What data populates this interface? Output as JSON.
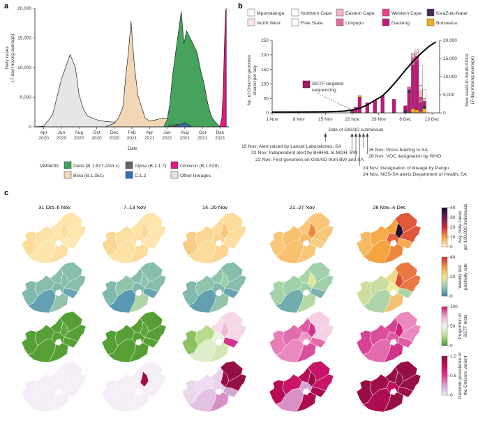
{
  "panels": {
    "a": "a",
    "b": "b",
    "c": "c"
  },
  "chart_data": [
    {
      "type": "area",
      "panel": "a",
      "ylabel": "Daily cases\n(7-day moving average)",
      "xlabel": "Date",
      "ylim": [
        0,
        20000
      ],
      "yticks": [
        0,
        5000,
        10000,
        15000,
        20000
      ],
      "ytick_labels": [
        "0",
        "5,000",
        "10,000",
        "15,000",
        "20,000"
      ],
      "x_unit": "months since 1 Mar 2020",
      "xlim": [
        0,
        22
      ],
      "xticks": [
        1,
        3,
        5,
        7,
        9,
        11,
        13,
        15,
        17,
        19,
        21
      ],
      "xtick_labels": [
        [
          "Apr",
          "2020"
        ],
        [
          "Jun",
          "2020"
        ],
        [
          "Aug",
          "2020"
        ],
        [
          "Oct",
          "2020"
        ],
        [
          "Dec",
          "2020"
        ],
        [
          "Feb",
          "2021"
        ],
        [
          "Apr",
          "2021"
        ],
        [
          "Jun",
          "2021"
        ],
        [
          "Aug",
          "2021"
        ],
        [
          "Oct",
          "2021"
        ],
        [
          "Dec",
          "2021"
        ]
      ],
      "series": [
        {
          "name": "Other lineages",
          "color": "#e6e6e6",
          "x": [
            0,
            1,
            2,
            3,
            4,
            4.6,
            5,
            5.5,
            6,
            7,
            8,
            9,
            10,
            10.5,
            22
          ],
          "y": [
            0,
            100,
            2000,
            8000,
            12200,
            10000,
            5500,
            3000,
            1800,
            1200,
            900,
            800,
            300,
            0,
            0
          ]
        },
        {
          "name": "Beta (B.1.351)",
          "color": "#f2d6b5",
          "x": [
            8,
            9,
            9.5,
            10,
            10.3,
            10.6,
            10.9,
            11.3,
            11.7,
            12.5,
            13,
            13.5,
            14,
            14.5,
            15,
            15.3,
            15.6,
            16,
            16.6
          ],
          "y": [
            0,
            600,
            1500,
            3500,
            8500,
            12500,
            17800,
            10000,
            5200,
            1500,
            1000,
            1100,
            1300,
            1500,
            1400,
            1100,
            600,
            200,
            0
          ]
        },
        {
          "name": "Delta (B.1.617.2/AY.x)",
          "color": "#45a35c",
          "x": [
            14.6,
            15,
            15.3,
            15.6,
            16,
            16.3,
            16.6,
            16.9,
            17.2,
            17.6,
            18,
            18.4,
            18.8,
            19.2,
            19.6,
            20,
            20.4,
            20.8,
            21
          ],
          "y": [
            0,
            1200,
            3800,
            8500,
            13000,
            16200,
            19500,
            14000,
            16200,
            15000,
            13800,
            12500,
            9500,
            7200,
            4000,
            1800,
            900,
            300,
            0
          ]
        },
        {
          "name": "Alpha (B.1.1.7)",
          "color": "#666666",
          "x": [
            15,
            15.5,
            16.2,
            16.6,
            17
          ],
          "y": [
            0,
            280,
            400,
            200,
            0
          ]
        },
        {
          "name": "C.1.2",
          "color": "#2f6eb5",
          "x": [
            15.8,
            16.4,
            17,
            17.4,
            17.8
          ],
          "y": [
            0,
            350,
            700,
            320,
            0
          ]
        },
        {
          "name": "Omicron (B.1.529)",
          "color": "#e31a7e",
          "x": [
            20.9,
            21,
            21.2,
            21.35,
            21.5,
            21.62,
            21.7
          ],
          "y": [
            0,
            200,
            1500,
            6000,
            14000,
            19500,
            20000
          ]
        }
      ],
      "legend": {
        "title": "Variants",
        "items": [
          {
            "label": "Delta (B.1.617.2/AY.x)",
            "color": "#45a35c"
          },
          {
            "label": "Alpha (B.1.1.7)",
            "color": "#666666"
          },
          {
            "label": "Omicron (B.1.529)",
            "color": "#e31a7e"
          },
          {
            "label": "Beta (B.1.351)",
            "color": "#f2d6b5"
          },
          {
            "label": "C.1.2",
            "color": "#2f6eb5"
          },
          {
            "label": "Other lineages",
            "color": "#e6e6e6"
          }
        ]
      }
    },
    {
      "type": "bar",
      "panel": "b",
      "ylabel": "No. of Omicron genomes\nshared per day",
      "y2label": "New cases in South Africa\n(7-day moving average)",
      "xlabel": "Date of GISAID submission",
      "ylim": [
        0,
        250
      ],
      "yticks": [
        0,
        50,
        100,
        150,
        200,
        250
      ],
      "y2lim": [
        0,
        20000
      ],
      "y2ticks": [
        0,
        5000,
        10000,
        15000,
        20000
      ],
      "y2tick_labels": [
        "0",
        "5,000",
        "10,000",
        "15,000",
        "20,000"
      ],
      "xlim": [
        1,
        45
      ],
      "xticks": [
        1,
        8,
        15,
        22,
        29,
        36,
        43
      ],
      "xtick_labels": [
        "1 Nov",
        "8 Nov",
        "15 Nov",
        "22 Nov",
        "29 Nov",
        "6 Dec",
        "13 Dec"
      ],
      "annotation": "SGTF-targeted\nsequencing",
      "bars": [
        {
          "day": 22,
          "total": 10,
          "stack": [
            [
              "Gauteng",
              10
            ]
          ],
          "hatched": true
        },
        {
          "day": 23,
          "total": 20,
          "stack": [
            [
              "Gauteng",
              20
            ]
          ],
          "hatched": false
        },
        {
          "day": 24,
          "total": 60,
          "stack": [
            [
              "Gauteng",
              55
            ],
            [
              "Botswana",
              5
            ]
          ],
          "hatched": false
        },
        {
          "day": 26,
          "total": 35,
          "stack": [
            [
              "Gauteng",
              35
            ]
          ],
          "hatched": false
        },
        {
          "day": 28,
          "total": 43,
          "stack": [
            [
              "Gauteng",
              43
            ]
          ],
          "hatched": false
        },
        {
          "day": 30,
          "total": 60,
          "stack": [
            [
              "Gauteng",
              60
            ]
          ],
          "hatched": false
        },
        {
          "day": 33,
          "total": 47,
          "stack": [
            [
              "Gauteng",
              47
            ]
          ],
          "hatched": false
        },
        {
          "day": 36,
          "total": 25,
          "stack": [
            [
              "KwaZulu-Natal",
              10
            ],
            [
              "Gauteng",
              15
            ]
          ],
          "hatched": false
        },
        {
          "day": 37,
          "total": 90,
          "stack": [
            [
              "Gauteng",
              70
            ],
            [
              "KwaZulu-Natal",
              10
            ],
            [
              "Limpopo",
              10
            ]
          ],
          "hatched": false
        },
        {
          "day": 38,
          "total": 205,
          "stack": [
            [
              "Botswana",
              15
            ],
            [
              "Gauteng",
              150
            ],
            [
              "Limpopo",
              25
            ],
            [
              "Eastern Cape",
              15
            ]
          ],
          "hatched": false
        },
        {
          "day": 39,
          "total": 220,
          "stack": [
            [
              "Botswana",
              10
            ],
            [
              "Gauteng",
              170
            ],
            [
              "Western Cape",
              15
            ],
            [
              "Eastern Cape",
              15
            ],
            [
              "North West",
              10
            ]
          ],
          "hatched": false
        },
        {
          "day": 40,
          "total": 165,
          "stack": [
            [
              "Botswana",
              5
            ],
            [
              "Gauteng",
              30
            ],
            [
              "Limpopo",
              10
            ],
            [
              "Western Cape",
              10
            ],
            [
              "Eastern Cape",
              20
            ],
            [
              "North West",
              20
            ],
            [
              "Northern Cape",
              70
            ]
          ],
          "hatched": false
        },
        {
          "day": 41,
          "total": 80,
          "stack": [
            [
              "Botswana",
              15
            ],
            [
              "KwaZulu-Natal",
              10
            ],
            [
              "Gauteng",
              15
            ],
            [
              "Eastern Cape",
              10
            ],
            [
              "Northern Cape",
              30
            ]
          ],
          "hatched": false
        }
      ],
      "cases_line": {
        "name": "New cases in South Africa",
        "day": [
          1,
          8,
          15,
          18,
          20,
          22,
          24,
          26,
          28,
          30,
          32,
          34,
          36,
          38,
          40,
          42,
          44
        ],
        "cases": [
          250,
          270,
          320,
          380,
          500,
          800,
          1300,
          2200,
          3500,
          4700,
          6800,
          9200,
          11800,
          14200,
          16300,
          18200,
          19600
        ]
      },
      "legend": [
        {
          "label": "Mpumalanga",
          "color": "#ffffff"
        },
        {
          "label": "Northern Cape",
          "color": "#ffffff"
        },
        {
          "label": "Eastern Cape",
          "color": "#f4b6c6"
        },
        {
          "label": "Western Cape",
          "color": "#e83f8c"
        },
        {
          "label": "KwaZulu-Natal",
          "color": "#4a2b5e"
        },
        {
          "label": "North West",
          "color": "#fde3ea"
        },
        {
          "label": "Free State",
          "color": "#ffffff"
        },
        {
          "label": "Limpopo",
          "color": "#e46aa0"
        },
        {
          "label": "Gauteng",
          "color": "#c0187a"
        },
        {
          "label": "Botswana",
          "color": "#f2b01e"
        }
      ]
    },
    {
      "type": "heatmap",
      "panel": "c",
      "columns": [
        "31 Oct–6 Nov",
        "7–13 Nov",
        "14–20 Nov",
        "21–27 Nov",
        "28 Nov–4 Dec"
      ],
      "rows": [
        {
          "name": "Avg. daily cases per 100,000 individuals",
          "colorbar": {
            "min": 0,
            "max": 40,
            "ticks": [
              "0",
              "10",
              "20",
              "30",
              "40"
            ]
          },
          "palette": [
            "#fff6c8",
            "#f5a13c",
            "#d3263c",
            "#6b1e5b",
            "#120d20"
          ]
        },
        {
          "name": "Weekly test positivity rate",
          "colorbar": {
            "min": 0,
            "max": 40,
            "ticks": [
              "0",
              "20",
              "40"
            ]
          },
          "palette": [
            "#3a7fb6",
            "#9ccfaa",
            "#f0ea95",
            "#f3964b",
            "#d22c2e"
          ]
        },
        {
          "name": "Proportion of SGTF tests",
          "colorbar": {
            "min": 0,
            "max": 100,
            "ticks": [
              "0",
              "50",
              "100"
            ]
          },
          "palette": [
            "#4d9a2c",
            "#b8dd8a",
            "#f7f7f7",
            "#f2a6cf",
            "#c9157a"
          ]
        },
        {
          "name": "Genomic prevalence of the Omicron variant",
          "colorbar": {
            "min": 0,
            "max": 1.0,
            "ticks": [
              "0",
              "0.5",
              "1.0"
            ]
          },
          "palette": [
            "#f5eef7",
            "#d6a5d4",
            "#de3b93",
            "#c20c5c",
            "#8a0f3e"
          ]
        }
      ],
      "values": [
        [
          [
            0.08,
            0.06,
            0.05,
            0.07,
            0.06,
            0.05,
            0.04,
            0.08,
            0.05
          ],
          [
            0.09,
            0.07,
            0.06,
            0.08,
            0.07,
            0.06,
            0.05,
            0.09,
            0.05
          ],
          [
            0.12,
            0.09,
            0.08,
            0.1,
            0.1,
            0.08,
            0.07,
            0.14,
            0.08
          ],
          [
            0.14,
            0.16,
            0.16,
            0.14,
            0.18,
            0.14,
            0.12,
            0.3,
            0.14
          ],
          [
            0.18,
            0.22,
            0.24,
            0.3,
            0.38,
            0.25,
            0.22,
            0.95,
            0.4
          ]
        ],
        [
          [
            0.18,
            0.2,
            0.1,
            0.22,
            0.18,
            0.2,
            0.12,
            0.2,
            0.2
          ],
          [
            0.18,
            0.22,
            0.08,
            0.3,
            0.18,
            0.2,
            0.12,
            0.22,
            0.2
          ],
          [
            0.18,
            0.22,
            0.1,
            0.22,
            0.18,
            0.22,
            0.12,
            0.25,
            0.2
          ],
          [
            0.28,
            0.26,
            0.14,
            0.33,
            0.25,
            0.3,
            0.16,
            0.45,
            0.26
          ],
          [
            0.4,
            0.38,
            0.3,
            0.62,
            0.5,
            0.55,
            0.3,
            0.92,
            0.82
          ]
        ],
        [
          [
            0.02,
            0.02,
            0.02,
            0.02,
            0.02,
            0.02,
            0.02,
            0.05,
            0.02
          ],
          [
            0.02,
            0.02,
            0.02,
            0.02,
            0.02,
            0.02,
            0.02,
            0.04,
            0.02
          ],
          [
            0.15,
            0.25,
            0.4,
            0.35,
            0.45,
            0.58,
            0.95,
            0.7,
            0.6
          ],
          [
            0.82,
            0.85,
            0.8,
            0.9,
            0.78,
            0.88,
            0.85,
            0.95,
            0.62
          ],
          [
            0.92,
            0.9,
            0.85,
            0.95,
            0.88,
            0.92,
            0.88,
            0.98,
            0.8
          ]
        ],
        [
          [
            0,
            0,
            0,
            0,
            0,
            0,
            0,
            0,
            0
          ],
          [
            0,
            0,
            0,
            0,
            0,
            0,
            0,
            0.9,
            0
          ],
          [
            0.08,
            0.06,
            0.15,
            0.3,
            0.1,
            0.1,
            0.25,
            0.95,
            0.95
          ],
          [
            0.8,
            0.7,
            0.3,
            0.85,
            0.25,
            0.8,
            0.85,
            0.95,
            0.7
          ],
          [
            0.95,
            0.9,
            0.85,
            0.95,
            0.75,
            0.95,
            0.92,
            0.98,
            0.95
          ]
        ]
      ]
    }
  ],
  "timeline": [
    "15 Nov: Alert raised by Lancet Laboratories, SA",
    "22 Nov: Independent alert by BHHRL to MOH, BW",
    "23 Nov: First genomes on GISAID from BW and SA",
    "25 Nov: Press briefing in SA",
    "26 Nov: VOC designation by WHO",
    "24 Nov: Designation of lineage by Pango",
    "24 Nov: NGS-SA alerts Department of Health, SA"
  ]
}
